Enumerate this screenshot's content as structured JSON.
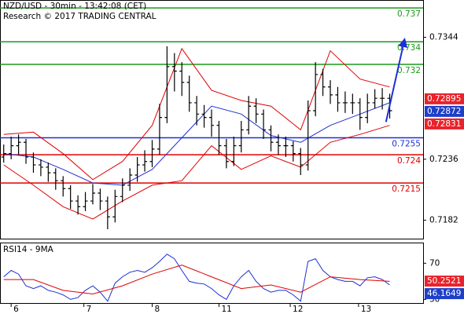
{
  "chart_data": [
    {
      "type": "ohlc",
      "title": "NZD/USD - 30min - 13:42:08 (CET)",
      "subtitle": "Research © 2017 TRADING CENTRAL",
      "xlim": [
        -0.5,
        56.5
      ],
      "ylim": [
        0.7165,
        0.7377
      ],
      "yticks": [
        0.7344,
        0.7236,
        0.7182
      ],
      "color": "#000000",
      "x": [
        0,
        1,
        2,
        3,
        4,
        5,
        6,
        7,
        8,
        9,
        10,
        11,
        12,
        13,
        14,
        15,
        16,
        17,
        18,
        19,
        20,
        21,
        22,
        23,
        24,
        25,
        26,
        27,
        28,
        29,
        30,
        31,
        32,
        33,
        34,
        35,
        36,
        37,
        38,
        39,
        40,
        41,
        42,
        43,
        44,
        45,
        46,
        47,
        48,
        49,
        50,
        51,
        52
      ],
      "open": [
        0.7238,
        0.7241,
        0.7248,
        0.7251,
        0.7238,
        0.7231,
        0.7229,
        0.7224,
        0.7217,
        0.721,
        0.7199,
        0.7194,
        0.7199,
        0.7206,
        0.7199,
        0.7185,
        0.7203,
        0.7213,
        0.7222,
        0.7231,
        0.7234,
        0.7245,
        0.7273,
        0.7318,
        0.7314,
        0.7304,
        0.7286,
        0.7276,
        0.7273,
        0.7266,
        0.7248,
        0.7234,
        0.7248,
        0.7262,
        0.7283,
        0.7276,
        0.7262,
        0.7251,
        0.7248,
        0.7248,
        0.7241,
        0.7231,
        0.7279,
        0.7311,
        0.73,
        0.7293,
        0.7286,
        0.7286,
        0.7286,
        0.7273,
        0.7286,
        0.729,
        0.729
      ],
      "high": [
        0.7249,
        0.7256,
        0.7258,
        0.7254,
        0.7242,
        0.7236,
        0.7233,
        0.7228,
        0.7221,
        0.7213,
        0.7204,
        0.7207,
        0.7214,
        0.721,
        0.7203,
        0.7209,
        0.7219,
        0.7228,
        0.7238,
        0.7244,
        0.7253,
        0.7285,
        0.7336,
        0.733,
        0.7322,
        0.731,
        0.7292,
        0.7284,
        0.728,
        0.727,
        0.7254,
        0.7256,
        0.727,
        0.7292,
        0.729,
        0.728,
        0.7266,
        0.7258,
        0.7256,
        0.7252,
        0.7246,
        0.7288,
        0.7322,
        0.7316,
        0.7306,
        0.73,
        0.7296,
        0.7294,
        0.729,
        0.7294,
        0.7298,
        0.7299,
        0.7294
      ],
      "low": [
        0.7233,
        0.7236,
        0.724,
        0.7232,
        0.7224,
        0.7221,
        0.7216,
        0.7209,
        0.7203,
        0.7192,
        0.7187,
        0.719,
        0.7196,
        0.7191,
        0.7174,
        0.718,
        0.7198,
        0.7208,
        0.7216,
        0.7225,
        0.7229,
        0.724,
        0.7268,
        0.7296,
        0.7292,
        0.7278,
        0.7266,
        0.7264,
        0.7256,
        0.724,
        0.7228,
        0.723,
        0.7242,
        0.7258,
        0.7268,
        0.7254,
        0.7243,
        0.724,
        0.7238,
        0.7234,
        0.7222,
        0.7226,
        0.7274,
        0.7292,
        0.7285,
        0.7278,
        0.7277,
        0.7276,
        0.7262,
        0.7268,
        0.7281,
        0.728,
        0.7272
      ],
      "close": [
        0.7241,
        0.7248,
        0.7251,
        0.7238,
        0.7231,
        0.7229,
        0.7224,
        0.7217,
        0.721,
        0.7199,
        0.7194,
        0.7199,
        0.7206,
        0.7199,
        0.7185,
        0.7203,
        0.7213,
        0.7222,
        0.7231,
        0.7234,
        0.7245,
        0.7273,
        0.7318,
        0.7314,
        0.7304,
        0.7286,
        0.7276,
        0.7273,
        0.7266,
        0.7248,
        0.7234,
        0.7248,
        0.7262,
        0.7283,
        0.7276,
        0.7262,
        0.7251,
        0.7248,
        0.7248,
        0.7241,
        0.7231,
        0.7279,
        0.7311,
        0.73,
        0.7293,
        0.7286,
        0.7286,
        0.7286,
        0.7273,
        0.7286,
        0.729,
        0.729,
        0.7279
      ],
      "lines": [
        {
          "color": "#e00000",
          "x": [
            0,
            4,
            8,
            12,
            16,
            20,
            24,
            28,
            32,
            36,
            40,
            44,
            48,
            52
          ],
          "values": [
            0.7258,
            0.726,
            0.7241,
            0.7218,
            0.7234,
            0.7266,
            0.7334,
            0.7297,
            0.7288,
            0.7283,
            0.7262,
            0.7332,
            0.7307,
            0.73
          ]
        },
        {
          "color": "#e00000",
          "x": [
            0,
            4,
            8,
            12,
            16,
            20,
            24,
            28,
            32,
            36,
            40,
            44,
            48,
            52
          ],
          "values": [
            0.7231,
            0.7213,
            0.7194,
            0.7183,
            0.7199,
            0.7213,
            0.7217,
            0.7248,
            0.7227,
            0.7239,
            0.7229,
            0.7251,
            0.7258,
            0.7266
          ]
        },
        {
          "color": "#2030d0",
          "x": [
            0,
            4,
            8,
            12,
            16,
            20,
            24,
            28,
            32,
            36,
            40,
            44,
            48,
            52
          ],
          "values": [
            0.7241,
            0.7238,
            0.7227,
            0.7215,
            0.7213,
            0.7227,
            0.7255,
            0.7283,
            0.7276,
            0.7257,
            0.7251,
            0.7266,
            0.7276,
            0.7286
          ]
        }
      ],
      "levels": [
        {
          "value": 0.737,
          "color": "#1a9a1a"
        },
        {
          "value": 0.734,
          "color": "#1a9a1a"
        },
        {
          "value": 0.732,
          "color": "#1a9a1a"
        },
        {
          "value": 0.7255,
          "color": "#1e2fd6"
        },
        {
          "value": 0.724,
          "color": "#e00000"
        },
        {
          "value": 0.7215,
          "color": "#e00000"
        }
      ],
      "projection": {
        "color": "#1e2fd6",
        "x": [
          51.5,
          54
        ],
        "values": [
          0.7269,
          0.7342
        ]
      },
      "price_labels": [
        {
          "value": 0.72895,
          "color": "#e8232b"
        },
        {
          "value": 0.72872,
          "color": "#1e3fc8"
        },
        {
          "value": 0.72831,
          "color": "#e8232b"
        }
      ]
    },
    {
      "type": "line",
      "title": "RSI14 - 9MA",
      "xlim": [
        -0.5,
        56.5
      ],
      "ylim": [
        26,
        92
      ],
      "yticks": [
        70,
        30
      ],
      "xticks": [
        {
          "value": 1,
          "label": "6"
        },
        {
          "value": 10.8,
          "label": "7"
        },
        {
          "value": 20,
          "label": "8"
        },
        {
          "value": 29,
          "label": "11"
        },
        {
          "value": 38.6,
          "label": "12"
        },
        {
          "value": 47.8,
          "label": "13"
        }
      ],
      "series": [
        {
          "color": "#1e2fd6",
          "x": [
            0,
            1,
            2,
            3,
            4,
            5,
            6,
            7,
            8,
            9,
            10,
            11,
            12,
            13,
            14,
            15,
            16,
            17,
            18,
            19,
            20,
            21,
            22,
            23,
            24,
            25,
            26,
            27,
            28,
            29,
            30,
            31,
            32,
            33,
            34,
            35,
            36,
            37,
            38,
            39,
            40,
            41,
            42,
            43,
            44,
            45,
            46,
            47,
            48,
            49,
            50,
            51,
            52
          ],
          "values": [
            55,
            62,
            58,
            45,
            42,
            45,
            40,
            38,
            35,
            30,
            32,
            40,
            45,
            38,
            28,
            48,
            55,
            60,
            62,
            60,
            65,
            72,
            80,
            75,
            62,
            50,
            48,
            47,
            42,
            35,
            30,
            45,
            55,
            62,
            50,
            42,
            38,
            40,
            40,
            35,
            28,
            72,
            75,
            62,
            55,
            52,
            50,
            50,
            45,
            54,
            55,
            52,
            46
          ]
        },
        {
          "color": "#e00000",
          "x": [
            0,
            4,
            8,
            12,
            16,
            20,
            24,
            28,
            32,
            36,
            40,
            44,
            48,
            52
          ],
          "values": [
            52,
            52,
            40,
            36,
            45,
            58,
            68,
            55,
            42,
            46,
            38,
            55,
            52,
            50
          ]
        }
      ],
      "price_labels": [
        {
          "value": 50.2521,
          "color": "#e8232b"
        },
        {
          "value": 46.1649,
          "color": "#1e3fc8"
        }
      ]
    }
  ]
}
